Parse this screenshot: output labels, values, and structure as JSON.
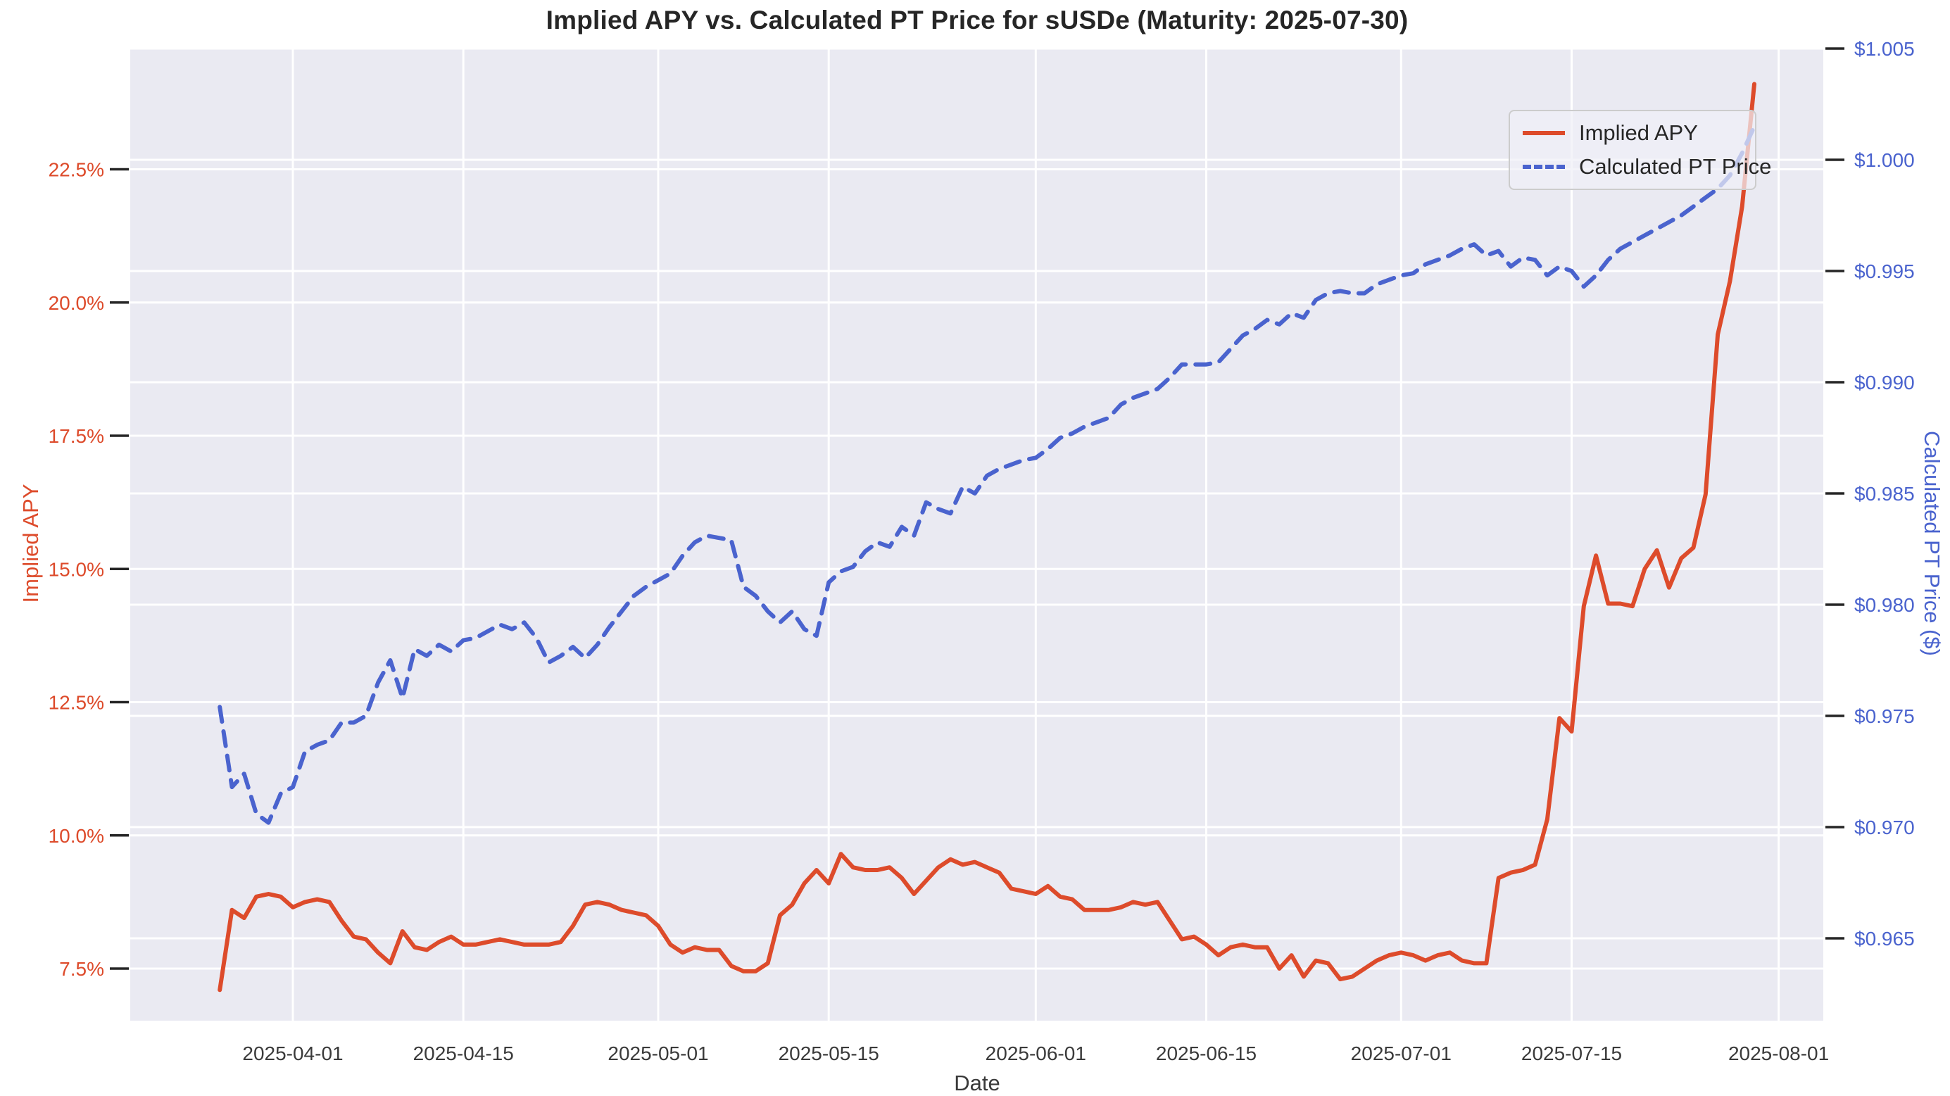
{
  "chart_data": {
    "type": "line",
    "title": "Implied APY vs. Calculated PT Price for sUSDe (Maturity: 2025-07-30)",
    "xlabel": "Date",
    "grid": true,
    "plot_bg_color": "#EAEAF2",
    "grid_color": "#FFFFFF",
    "legend_position": "upper right",
    "x_axis": {
      "tick_dates": [
        "2025-04-01",
        "2025-04-15",
        "2025-05-01",
        "2025-05-15",
        "2025-06-01",
        "2025-06-15",
        "2025-07-01",
        "2025-07-15",
        "2025-08-01"
      ],
      "range": [
        "2025-03-19",
        "2025-08-03"
      ]
    },
    "y_left": {
      "label": "Implied APY",
      "color": "#DD4B2B",
      "tick_values": [
        7.5,
        10.0,
        12.5,
        15.0,
        17.5,
        20.0,
        22.5
      ],
      "tick_labels": [
        "7.5%",
        "10.0%",
        "12.5%",
        "15.0%",
        "17.5%",
        "20.0%",
        "22.5%"
      ],
      "range": [
        6.5,
        24.8
      ]
    },
    "y_right": {
      "label": "Calculated PT Price ($)",
      "color": "#4A63CE",
      "tick_values": [
        0.965,
        0.97,
        0.975,
        0.98,
        0.985,
        0.99,
        0.995,
        1.0,
        1.005
      ],
      "tick_labels": [
        "$0.965",
        "$0.970",
        "$0.975",
        "$0.980",
        "$0.985",
        "$0.990",
        "$0.995",
        "$1.000",
        "$1.005"
      ],
      "range": [
        0.9612,
        1.0052
      ]
    },
    "dates": [
      "2025-03-26",
      "2025-03-27",
      "2025-03-28",
      "2025-03-29",
      "2025-03-30",
      "2025-03-31",
      "2025-04-01",
      "2025-04-02",
      "2025-04-03",
      "2025-04-04",
      "2025-04-05",
      "2025-04-06",
      "2025-04-07",
      "2025-04-08",
      "2025-04-09",
      "2025-04-10",
      "2025-04-11",
      "2025-04-12",
      "2025-04-13",
      "2025-04-14",
      "2025-04-15",
      "2025-04-16",
      "2025-04-17",
      "2025-04-18",
      "2025-04-19",
      "2025-04-20",
      "2025-04-21",
      "2025-04-22",
      "2025-04-23",
      "2025-04-24",
      "2025-04-25",
      "2025-04-26",
      "2025-04-27",
      "2025-04-28",
      "2025-04-29",
      "2025-04-30",
      "2025-05-01",
      "2025-05-02",
      "2025-05-03",
      "2025-05-04",
      "2025-05-05",
      "2025-05-06",
      "2025-05-07",
      "2025-05-08",
      "2025-05-09",
      "2025-05-10",
      "2025-05-11",
      "2025-05-12",
      "2025-05-13",
      "2025-05-14",
      "2025-05-15",
      "2025-05-16",
      "2025-05-17",
      "2025-05-18",
      "2025-05-19",
      "2025-05-20",
      "2025-05-21",
      "2025-05-22",
      "2025-05-23",
      "2025-05-24",
      "2025-05-25",
      "2025-05-26",
      "2025-05-27",
      "2025-05-28",
      "2025-05-29",
      "2025-05-30",
      "2025-05-31",
      "2025-06-01",
      "2025-06-02",
      "2025-06-03",
      "2025-06-04",
      "2025-06-05",
      "2025-06-06",
      "2025-06-07",
      "2025-06-08",
      "2025-06-09",
      "2025-06-10",
      "2025-06-11",
      "2025-06-12",
      "2025-06-13",
      "2025-06-14",
      "2025-06-15",
      "2025-06-16",
      "2025-06-17",
      "2025-06-18",
      "2025-06-19",
      "2025-06-20",
      "2025-06-21",
      "2025-06-22",
      "2025-06-23",
      "2025-06-24",
      "2025-06-25",
      "2025-06-26",
      "2025-06-27",
      "2025-06-28",
      "2025-06-29",
      "2025-06-30",
      "2025-07-01",
      "2025-07-02",
      "2025-07-03",
      "2025-07-04",
      "2025-07-05",
      "2025-07-06",
      "2025-07-07",
      "2025-07-08",
      "2025-07-09",
      "2025-07-10",
      "2025-07-11",
      "2025-07-12",
      "2025-07-13",
      "2025-07-14",
      "2025-07-15",
      "2025-07-16",
      "2025-07-17",
      "2025-07-18",
      "2025-07-19",
      "2025-07-20",
      "2025-07-21",
      "2025-07-22",
      "2025-07-23",
      "2025-07-24",
      "2025-07-25",
      "2025-07-26",
      "2025-07-27",
      "2025-07-28",
      "2025-07-29",
      "2025-07-30"
    ],
    "series": [
      {
        "name": "Implied APY",
        "axis": "left",
        "style": "solid",
        "color": "#DD4B2B",
        "values": [
          7.1,
          8.6,
          8.45,
          8.85,
          8.9,
          8.85,
          8.65,
          8.75,
          8.8,
          8.75,
          8.4,
          8.1,
          8.05,
          7.8,
          7.6,
          8.2,
          7.9,
          7.85,
          8.0,
          8.1,
          7.95,
          7.95,
          8.0,
          8.05,
          8.0,
          7.95,
          7.95,
          7.95,
          8.0,
          8.3,
          8.7,
          8.75,
          8.7,
          8.6,
          8.55,
          8.5,
          8.3,
          7.95,
          7.8,
          7.9,
          7.85,
          7.85,
          7.55,
          7.45,
          7.45,
          7.6,
          8.5,
          8.7,
          9.1,
          9.35,
          9.1,
          9.65,
          9.4,
          9.35,
          9.35,
          9.4,
          9.2,
          8.9,
          9.15,
          9.4,
          9.55,
          9.45,
          9.5,
          9.4,
          9.3,
          9.0,
          8.95,
          8.9,
          9.05,
          8.85,
          8.8,
          8.6,
          8.6,
          8.6,
          8.65,
          8.75,
          8.7,
          8.75,
          8.4,
          8.05,
          8.1,
          7.95,
          7.75,
          7.9,
          7.95,
          7.9,
          7.9,
          7.5,
          7.75,
          7.35,
          7.65,
          7.6,
          7.3,
          7.35,
          7.5,
          7.65,
          7.75,
          7.8,
          7.75,
          7.65,
          7.75,
          7.8,
          7.65,
          7.6,
          7.6,
          9.2,
          9.3,
          9.35,
          9.45,
          10.3,
          12.2,
          11.95,
          14.3,
          15.25,
          14.35,
          14.35,
          14.3,
          15.0,
          15.35,
          14.65,
          15.2,
          15.4,
          16.4,
          19.4,
          20.4,
          21.8,
          24.1
        ]
      },
      {
        "name": "Calculated PT Price",
        "axis": "right",
        "style": "dashed",
        "color": "#4A63CE",
        "values": [
          0.9754,
          0.9718,
          0.9724,
          0.9706,
          0.9702,
          0.9715,
          0.9718,
          0.9734,
          0.9737,
          0.9739,
          0.9747,
          0.9747,
          0.975,
          0.9765,
          0.9775,
          0.9758,
          0.978,
          0.9777,
          0.9782,
          0.9779,
          0.9784,
          0.9785,
          0.9788,
          0.9791,
          0.9789,
          0.9792,
          0.9785,
          0.9774,
          0.9777,
          0.9781,
          0.9776,
          0.9782,
          0.979,
          0.9797,
          0.9804,
          0.9808,
          0.9811,
          0.9814,
          0.9822,
          0.9828,
          0.9831,
          0.983,
          0.9829,
          0.9808,
          0.9804,
          0.9797,
          0.9792,
          0.9797,
          0.9789,
          0.9786,
          0.981,
          0.9815,
          0.9817,
          0.9824,
          0.9828,
          0.9826,
          0.9835,
          0.9831,
          0.9846,
          0.9843,
          0.9841,
          0.9853,
          0.985,
          0.9858,
          0.9861,
          0.9863,
          0.9865,
          0.9866,
          0.987,
          0.9875,
          0.9877,
          0.988,
          0.9882,
          0.9884,
          0.989,
          0.9893,
          0.9895,
          0.9897,
          0.9902,
          0.9908,
          0.9908,
          0.9908,
          0.9909,
          0.9915,
          0.9921,
          0.9924,
          0.9928,
          0.9926,
          0.9931,
          0.9929,
          0.9937,
          0.994,
          0.9941,
          0.994,
          0.994,
          0.9944,
          0.9946,
          0.9948,
          0.9949,
          0.9953,
          0.9955,
          0.9957,
          0.996,
          0.9962,
          0.9957,
          0.9959,
          0.9952,
          0.9956,
          0.9955,
          0.9948,
          0.9952,
          0.995,
          0.9943,
          0.9948,
          0.9955,
          0.996,
          0.9963,
          0.9966,
          0.9969,
          0.9972,
          0.9975,
          0.9979,
          0.9983,
          0.9987,
          0.9993,
          1.0003,
          1.0015
        ]
      }
    ]
  }
}
